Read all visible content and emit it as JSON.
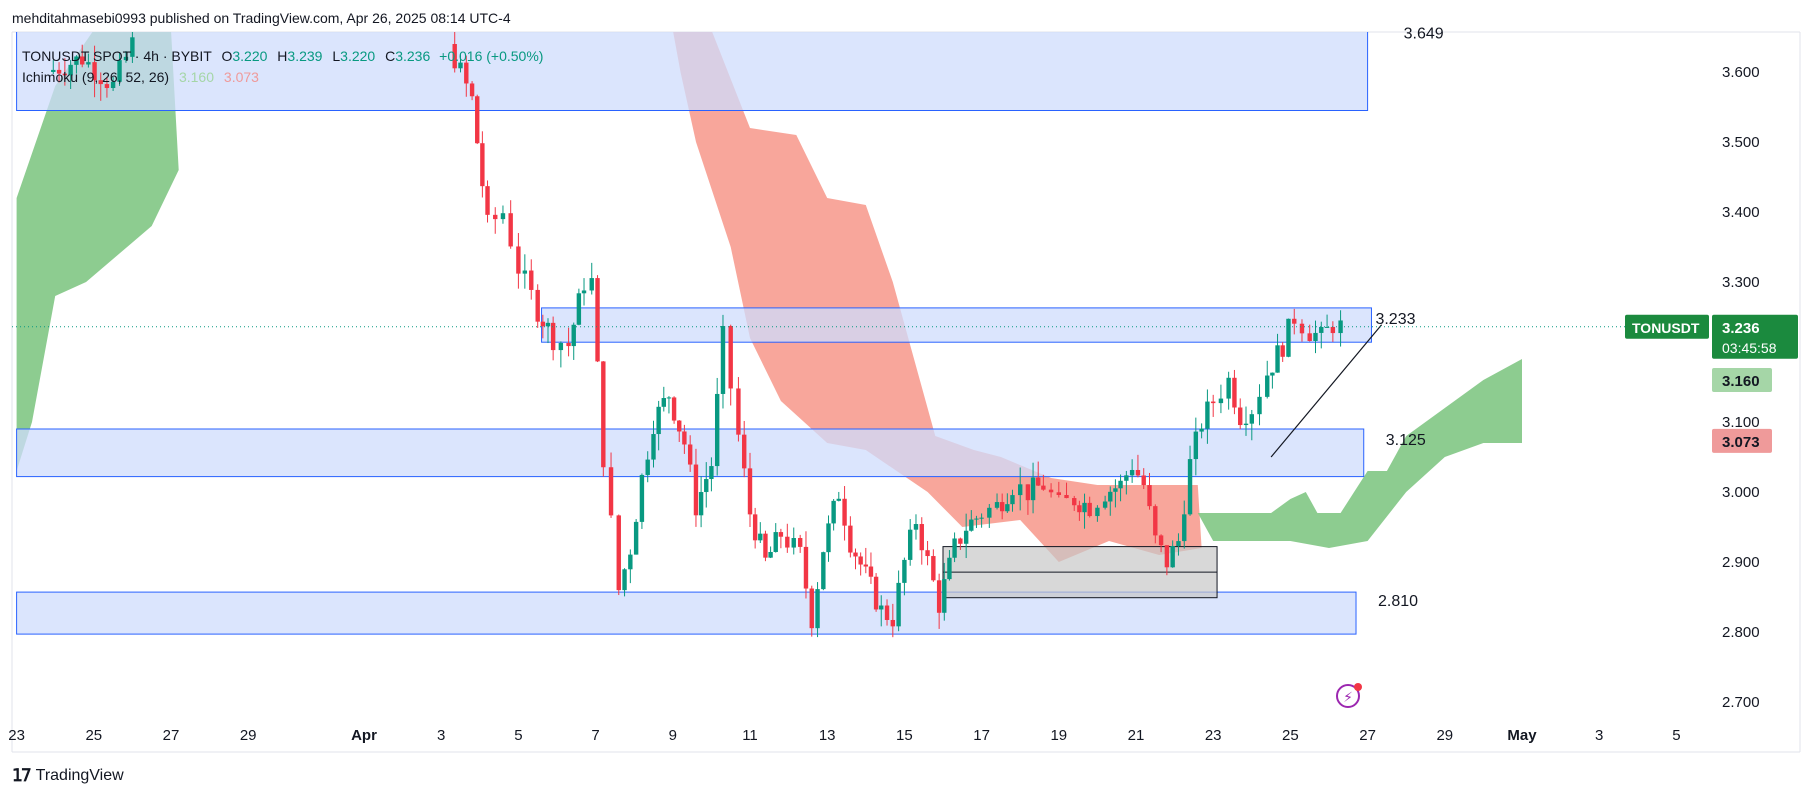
{
  "header": {
    "publish_line": "mehditahmasebi0993 published on TradingView.com, Apr 26, 2025 08:14 UTC-4"
  },
  "legend": {
    "symbol_line": "TONUSDT SPOT · 4h · BYBIT",
    "open_label": "O",
    "open": "3.220",
    "high_label": "H",
    "high": "3.239",
    "low_label": "L",
    "low": "3.220",
    "close_label": "C",
    "close": "3.236",
    "change": "+0.016 (+0.50%)",
    "indicator": "Ichimoku (9, 26, 52, 26)",
    "tenkan_value": "3.160",
    "kijun_value": "3.073"
  },
  "footer": {
    "brand": "TradingView"
  },
  "colors": {
    "bull": "#089981",
    "bear": "#f23645",
    "cloud_bull": "#81c784",
    "cloud_bear": "#f7968a",
    "zone_fill": "#cfdcfc",
    "zone_border": "#2962ff",
    "badge_green": "#1b8a3e",
    "badge_tenkan": "#a5d6a7",
    "badge_kijun": "#ef9a9a"
  },
  "icons": {
    "bolt": "lightning-icon",
    "logo": "tradingview-logo-icon"
  },
  "chart_data": {
    "type": "candlestick",
    "symbol": "TONUSDT",
    "timeframe": "4h",
    "ylim": [
      2.64,
      3.66
    ],
    "y_ticks": [
      "3.600",
      "3.500",
      "3.400",
      "3.300",
      "3.100",
      "3.000",
      "2.900",
      "2.800",
      "2.700"
    ],
    "x_ticks": [
      {
        "label": "23",
        "day": -9
      },
      {
        "label": "25",
        "day": -7
      },
      {
        "label": "27",
        "day": -5
      },
      {
        "label": "29",
        "day": -3
      },
      {
        "label": "Apr",
        "day": 0
      },
      {
        "label": "3",
        "day": 2
      },
      {
        "label": "5",
        "day": 4
      },
      {
        "label": "7",
        "day": 6
      },
      {
        "label": "9",
        "day": 8
      },
      {
        "label": "11",
        "day": 10
      },
      {
        "label": "13",
        "day": 12
      },
      {
        "label": "15",
        "day": 14
      },
      {
        "label": "17",
        "day": 16
      },
      {
        "label": "19",
        "day": 18
      },
      {
        "label": "21",
        "day": 20
      },
      {
        "label": "23",
        "day": 22
      },
      {
        "label": "25",
        "day": 24
      },
      {
        "label": "27",
        "day": 26
      },
      {
        "label": "29",
        "day": 28
      },
      {
        "label": "May",
        "day": 30
      },
      {
        "label": "3",
        "day": 32
      },
      {
        "label": "5",
        "day": 34
      }
    ],
    "candle_path": [
      [
        -8.2,
        3.6
      ],
      [
        -7.3,
        3.62
      ],
      [
        -6.5,
        3.58
      ],
      [
        -6.0,
        3.64
      ],
      [
        2.2,
        3.64
      ],
      [
        2.8,
        3.56
      ],
      [
        3.2,
        3.38
      ],
      [
        3.6,
        3.4
      ],
      [
        4.0,
        3.32
      ],
      [
        4.5,
        3.26
      ],
      [
        4.9,
        3.22
      ],
      [
        5.3,
        3.21
      ],
      [
        5.7,
        3.3
      ],
      [
        5.9,
        3.3
      ],
      [
        6.2,
        3.05
      ],
      [
        6.6,
        2.86
      ],
      [
        6.9,
        2.92
      ],
      [
        7.2,
        3.02
      ],
      [
        7.5,
        3.1
      ],
      [
        7.9,
        3.14
      ],
      [
        8.3,
        3.07
      ],
      [
        8.6,
        2.98
      ],
      [
        9.0,
        3.04
      ],
      [
        9.3,
        3.22
      ],
      [
        9.7,
        3.08
      ],
      [
        10.0,
        2.97
      ],
      [
        10.4,
        2.9
      ],
      [
        10.8,
        2.94
      ],
      [
        11.3,
        2.91
      ],
      [
        11.6,
        2.82
      ],
      [
        11.9,
        2.92
      ],
      [
        12.3,
        3.0
      ],
      [
        12.6,
        2.93
      ],
      [
        13.0,
        2.88
      ],
      [
        13.4,
        2.83
      ],
      [
        13.7,
        2.82
      ],
      [
        14.0,
        2.9
      ],
      [
        14.3,
        2.96
      ],
      [
        14.6,
        2.9
      ],
      [
        14.9,
        2.84
      ],
      [
        15.3,
        2.92
      ],
      [
        15.6,
        2.95
      ],
      [
        16.0,
        2.97
      ],
      [
        16.4,
        2.98
      ],
      [
        16.8,
        3.01
      ],
      [
        17.2,
        3.0
      ],
      [
        17.6,
        3.01
      ],
      [
        18.0,
        2.98
      ],
      [
        18.4,
        2.99
      ],
      [
        18.8,
        2.98
      ],
      [
        19.2,
        3.0
      ],
      [
        19.6,
        3.01
      ],
      [
        19.9,
        3.04
      ],
      [
        20.2,
        3.01
      ],
      [
        20.5,
        2.93
      ],
      [
        20.8,
        2.9
      ],
      [
        21.1,
        2.93
      ],
      [
        21.4,
        3.04
      ],
      [
        21.7,
        3.1
      ],
      [
        22.0,
        3.13
      ],
      [
        22.4,
        3.16
      ],
      [
        22.7,
        3.11
      ],
      [
        23.0,
        3.12
      ],
      [
        23.4,
        3.17
      ],
      [
        23.8,
        3.21
      ],
      [
        24.1,
        3.25
      ],
      [
        24.5,
        3.23
      ],
      [
        24.8,
        3.22
      ],
      [
        25.1,
        3.24
      ],
      [
        25.3,
        3.236
      ]
    ],
    "last_price": "3.236",
    "last_price_label": "TONUSDT",
    "countdown": "03:45:58",
    "tenkan": "3.160",
    "kijun": "3.073",
    "zones": [
      {
        "from_day": -9.0,
        "to_day": 26.0,
        "top": 3.665,
        "bottom": 3.545,
        "label": "3.649"
      },
      {
        "from_day": 4.6,
        "to_day": 26.1,
        "top": 3.263,
        "bottom": 3.214,
        "label": "3.233"
      },
      {
        "from_day": -9.0,
        "to_day": 25.9,
        "top": 3.09,
        "bottom": 3.022,
        "label": "3.125"
      },
      {
        "from_day": -9.0,
        "to_day": 25.7,
        "top": 2.857,
        "bottom": 2.797,
        "label": "2.810"
      }
    ],
    "gray_box": {
      "from_day": 15.0,
      "to_day": 22.1,
      "top": 2.922,
      "bottom": 2.849
    },
    "trendline": {
      "from": [
        23.5,
        3.05
      ],
      "to": [
        26.0,
        3.236
      ]
    },
    "cloud_bull_early": {
      "upper": [
        [
          -9.0,
          3.42
        ],
        [
          -8.0,
          3.58
        ],
        [
          -7.0,
          3.66
        ],
        [
          -5.0,
          3.66
        ],
        [
          -4.8,
          3.46
        ],
        [
          -5.5,
          3.38
        ],
        [
          -7.2,
          3.3
        ],
        [
          -8.0,
          3.28
        ],
        [
          -8.6,
          3.1
        ],
        [
          -9.0,
          3.03
        ]
      ],
      "note": "closed polygon"
    },
    "cloud_bear": [
      [
        8.0,
        3.66
      ],
      [
        9.0,
        3.66
      ],
      [
        10.0,
        3.52
      ],
      [
        11.2,
        3.51
      ],
      [
        12.0,
        3.42
      ],
      [
        13.0,
        3.41
      ],
      [
        13.7,
        3.3
      ],
      [
        14.2,
        3.2
      ],
      [
        14.8,
        3.08
      ],
      [
        15.8,
        3.06
      ],
      [
        16.5,
        3.05
      ],
      [
        17.8,
        3.02
      ],
      [
        19.0,
        3.01
      ],
      [
        20.3,
        3.01
      ],
      [
        21.6,
        3.01
      ],
      [
        21.7,
        2.92
      ],
      [
        20.6,
        2.91
      ],
      [
        19.3,
        2.93
      ],
      [
        18.0,
        2.9
      ],
      [
        17.0,
        2.96
      ],
      [
        15.5,
        2.95
      ],
      [
        14.6,
        3.0
      ],
      [
        13.0,
        3.06
      ],
      [
        12.0,
        3.07
      ],
      [
        10.8,
        3.13
      ],
      [
        10.0,
        3.22
      ],
      [
        9.5,
        3.35
      ],
      [
        8.6,
        3.5
      ],
      [
        8.2,
        3.6
      ]
    ],
    "cloud_bull_late": [
      [
        21.6,
        2.97
      ],
      [
        23.5,
        2.97
      ],
      [
        24.0,
        2.99
      ],
      [
        24.4,
        3.0
      ],
      [
        24.7,
        2.97
      ],
      [
        25.3,
        2.97
      ],
      [
        26.0,
        3.03
      ],
      [
        26.5,
        3.03
      ],
      [
        27.0,
        3.08
      ],
      [
        28.0,
        3.12
      ],
      [
        29.0,
        3.16
      ],
      [
        30.0,
        3.19
      ],
      [
        30.0,
        3.07
      ],
      [
        29.0,
        3.07
      ],
      [
        28.0,
        3.05
      ],
      [
        27.0,
        3.0
      ],
      [
        26.0,
        2.93
      ],
      [
        25.0,
        2.92
      ],
      [
        24.0,
        2.93
      ],
      [
        23.0,
        2.93
      ],
      [
        22.0,
        2.93
      ]
    ]
  }
}
